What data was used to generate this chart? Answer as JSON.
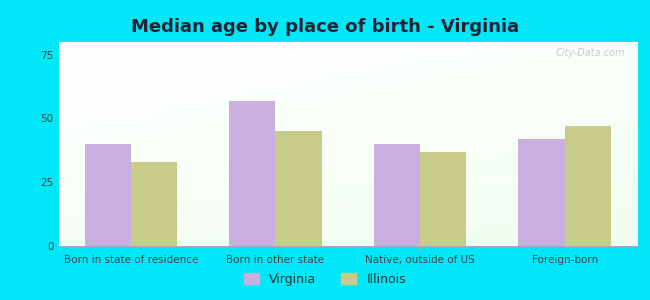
{
  "title": "Median age by place of birth - Virginia",
  "categories": [
    "Born in state of residence",
    "Born in other state",
    "Native, outside of US",
    "Foreign-born"
  ],
  "virginia_values": [
    40,
    57,
    40,
    42
  ],
  "illinois_values": [
    33,
    45,
    37,
    47
  ],
  "virginia_color": "#c9aee0",
  "illinois_color": "#c8cb8a",
  "ylim": [
    0,
    80
  ],
  "yticks": [
    0,
    25,
    50,
    75
  ],
  "background_outer": "#00e8f8",
  "watermark": "City-Data.com",
  "legend_virginia": "Virginia",
  "legend_illinois": "Illinois",
  "bar_width": 0.32,
  "title_fontsize": 13,
  "tick_fontsize": 7.5,
  "legend_fontsize": 9,
  "title_color": "#222233"
}
